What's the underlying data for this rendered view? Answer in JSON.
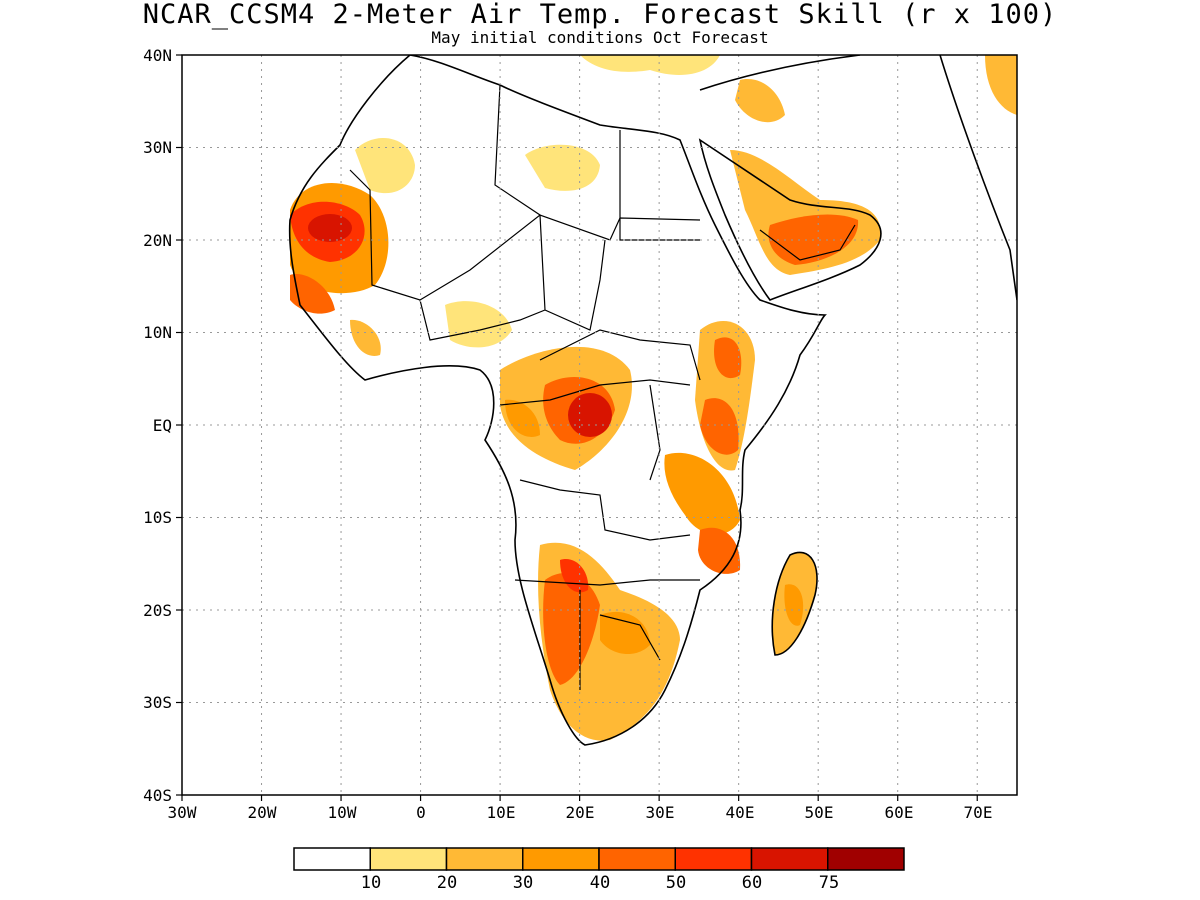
{
  "map": {
    "title": "NCAR_CCSM4 2-Meter Air Temp. Forecast Skill (r x 100)",
    "subtitle": "May initial conditions  Oct Forecast",
    "lon_labels": [
      "30W",
      "20W",
      "10W",
      "0",
      "10E",
      "20E",
      "30E",
      "40E",
      "50E",
      "60E",
      "70E"
    ],
    "lat_labels": [
      "40N",
      "30N",
      "20N",
      "10N",
      "EQ",
      "10S",
      "20S",
      "30S",
      "40S"
    ]
  },
  "colorbar": {
    "colors": [
      "#ffffff",
      "#ffe47a",
      "#ffb935",
      "#ff9a00",
      "#ff6400",
      "#ff3200",
      "#d81400",
      "#a00000"
    ],
    "labels": [
      "10",
      "20",
      "30",
      "40",
      "50",
      "60",
      "75"
    ]
  }
}
